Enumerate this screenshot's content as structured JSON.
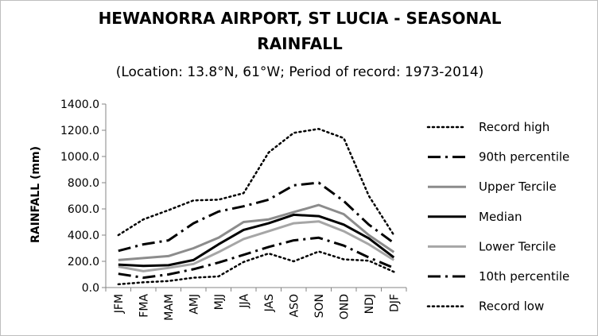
{
  "chart_data": {
    "type": "line",
    "title_line1": "HEWANORRA AIRPORT, ST LUCIA - SEASONAL",
    "title_line2": "RAINFALL",
    "subtitle": "(Location: 13.8°N, 61°W; Period of record: 1973-2014)",
    "ylabel": "RAINFALL (mm)",
    "xlabel": "",
    "ylim": [
      0,
      1400
    ],
    "ytick_labels": [
      "0.0",
      "200.0",
      "400.0",
      "600.0",
      "800.0",
      "1000.0",
      "1200.0",
      "1400.0"
    ],
    "yticks": [
      0,
      200,
      400,
      600,
      800,
      1000,
      1200,
      1400
    ],
    "categories": [
      "JFM",
      "FMA",
      "MAM",
      "AMJ",
      "MJJ",
      "JJA",
      "JAS",
      "ASO",
      "SON",
      "OND",
      "NDJ",
      "DJF"
    ],
    "grid": false,
    "legend_position": "right",
    "series": [
      {
        "name": "Record high",
        "style": "dotted",
        "color": "#000000",
        "values": [
          400,
          520,
          590,
          665,
          670,
          720,
          1030,
          1180,
          1210,
          1140,
          700,
          400
        ]
      },
      {
        "name": "90th percentile",
        "style": "dashdot",
        "color": "#000000",
        "values": [
          280,
          330,
          360,
          490,
          580,
          620,
          670,
          780,
          800,
          660,
          480,
          340
        ]
      },
      {
        "name": "Upper Tercile",
        "style": "solid",
        "color": "#8c8c8c",
        "values": [
          210,
          225,
          240,
          300,
          380,
          500,
          520,
          575,
          630,
          560,
          400,
          270
        ]
      },
      {
        "name": "Median",
        "style": "solid",
        "color": "#000000",
        "values": [
          175,
          165,
          170,
          210,
          330,
          440,
          490,
          555,
          545,
          480,
          375,
          230
        ]
      },
      {
        "name": "Lower Tercile",
        "style": "solid",
        "color": "#a6a6a6",
        "values": [
          160,
          125,
          150,
          180,
          270,
          370,
          430,
          490,
          505,
          430,
          330,
          210
        ]
      },
      {
        "name": "10th percentile",
        "style": "dashdot",
        "color": "#000000",
        "values": [
          105,
          75,
          100,
          140,
          190,
          250,
          310,
          360,
          380,
          320,
          230,
          150
        ]
      },
      {
        "name": "Record low",
        "style": "dotted",
        "color": "#000000",
        "values": [
          25,
          40,
          50,
          75,
          85,
          195,
          260,
          200,
          275,
          215,
          205,
          120
        ]
      }
    ]
  }
}
